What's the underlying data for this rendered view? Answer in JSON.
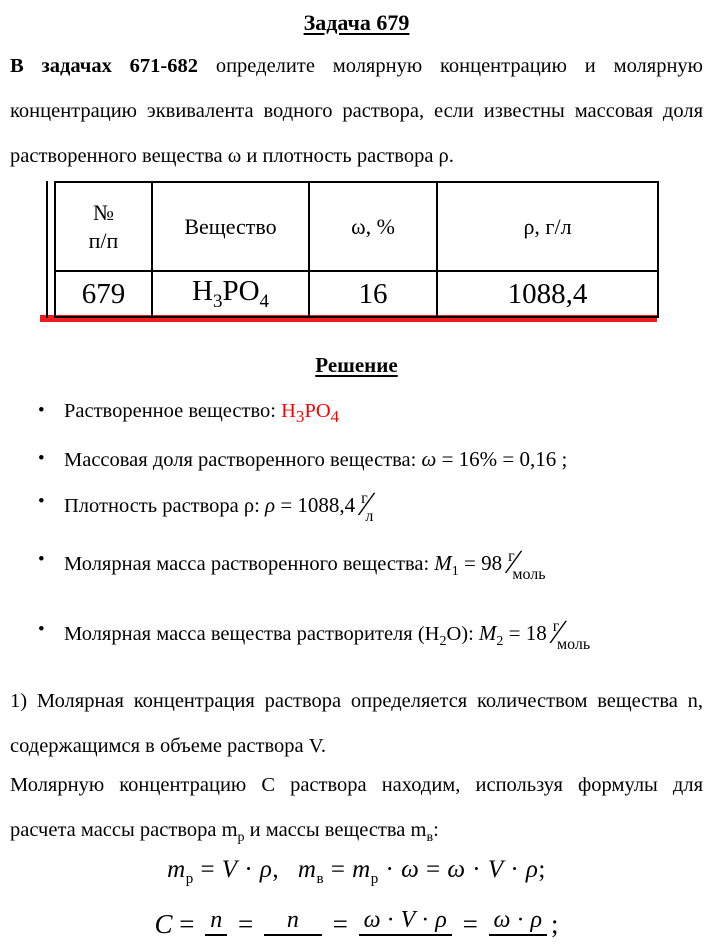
{
  "colors": {
    "text": "#000000",
    "accent_red": "#ff0000",
    "rule_red": "#ee1c1c"
  },
  "glyphs": {
    "bullet": "•",
    "slash": "∕"
  },
  "title": "Задача 679",
  "intro": {
    "lead": "В задачах 671-682",
    "rest": " определите молярную концентрацию и молярную концентрацию эквивалента водного раствора, если известны массовая доля растворенного вещества ω и плотность раствора ρ."
  },
  "table": {
    "h1a": "№",
    "h1b": "п/п",
    "h2": "Вещество",
    "h3": "ω, %",
    "h4": "ρ, г/л",
    "row": {
      "num": "679",
      "sub": [
        "H",
        "3",
        "PO",
        "4"
      ],
      "omega": "16",
      "rho": "1088,4"
    }
  },
  "solution_heading": "Решение",
  "bullets": {
    "b1": {
      "label": "Растворенное вещество:",
      "chem": [
        "H",
        "3",
        "PO",
        "4"
      ]
    },
    "b2": {
      "label": "Массовая доля растворенного вещества:",
      "omega": "ω",
      "rhs": " = 16% = 0,16",
      "tail": " ;"
    },
    "b3": {
      "label": "Плотность раствора ρ:",
      "rho": "ρ",
      "rhs": " = 1088,4",
      "unit_num": "г",
      "unit_den": "л"
    },
    "b4": {
      "label": "Молярная масса растворенного вещества:",
      "M": "M",
      "sub": "1",
      "rhs": " = 98",
      "unit_num": "г",
      "unit_den": "моль"
    },
    "b5": {
      "label_pre": "Молярная масса вещества растворителя (H",
      "label_sub": "2",
      "label_post": "O):",
      "M": "M",
      "sub": "2",
      "rhs": " = 18",
      "unit_num": "г",
      "unit_den": "моль"
    }
  },
  "para_1": "1) Молярная концентрация раствора определяется количеством вещества n, содержащимся в объеме раствора V.",
  "para_2": {
    "p1": "Молярную концентрацию С раствора находим, используя формулы для расчета массы раствора m",
    "s1": "р",
    "p2": " и массы вещества m",
    "s2": "в",
    "p3": ":"
  },
  "f1": {
    "m": "m",
    "p": "p",
    "v_sub": "в",
    "V": "V",
    "rho": "ρ",
    "omega": "ω",
    "eq": " = ",
    "dot": " · ",
    "comma": ", ",
    "semi": ";"
  },
  "f2": {
    "C": "C",
    "eq": " = ",
    "n": "n",
    "omega": "ω",
    "V": "V",
    "rho": "ρ",
    "dot": " · ",
    "semi": ";"
  }
}
